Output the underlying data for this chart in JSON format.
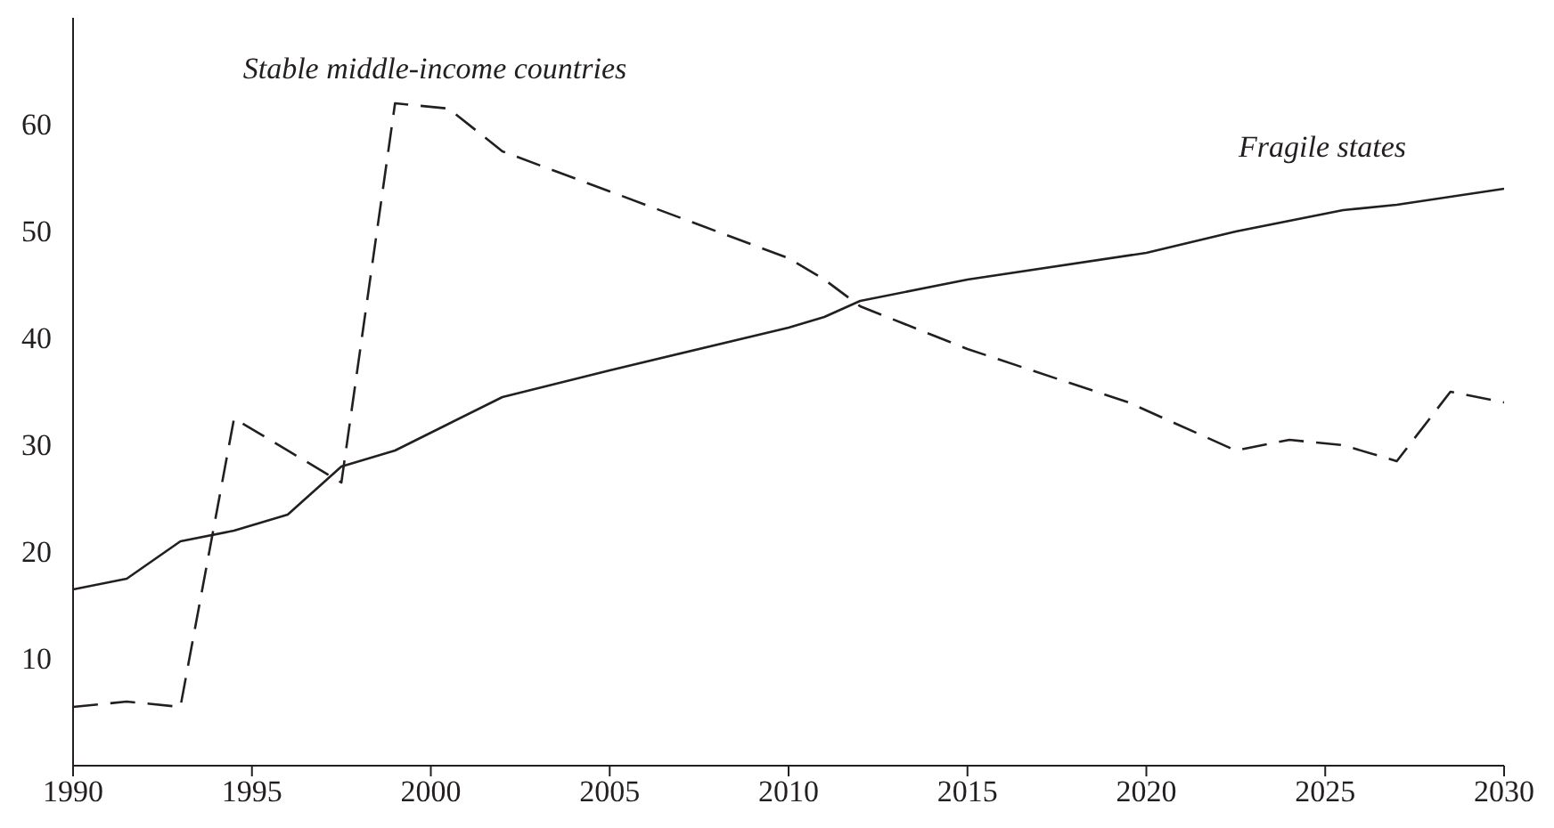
{
  "chart_data": {
    "type": "line",
    "xlim": [
      1990,
      2030
    ],
    "xticks": [
      1990,
      1995,
      2000,
      2005,
      2010,
      2015,
      2020,
      2025,
      2030
    ],
    "ylim": [
      0,
      70
    ],
    "yticks": [
      10,
      20,
      30,
      40,
      50,
      60
    ],
    "grid": false,
    "legend": false,
    "marker": "none",
    "series": [
      {
        "color": "#231f20",
        "line_style": "solid",
        "x": [
          1990,
          1991.5,
          1993,
          1994.5,
          1996,
          1997.5,
          1999,
          2000.5,
          2002,
          2005,
          2010,
          2011,
          2012,
          2015,
          2020,
          2022.5,
          2025.5,
          2027,
          2030
        ],
        "values": [
          16.5,
          17.5,
          21,
          22,
          23.5,
          28,
          29.5,
          32,
          34.5,
          37,
          41,
          42,
          43.5,
          45.5,
          48,
          50,
          52,
          52.5,
          54
        ]
      },
      {
        "color": "#231f20",
        "line_style": "dashed",
        "x": [
          1990,
          1991.5,
          1993,
          1994.5,
          1997.5,
          1999,
          2000.5,
          2002,
          2010,
          2011,
          2012,
          2015,
          2019.5,
          2022.5,
          2024,
          2025.5,
          2027,
          2028.5,
          2030
        ],
        "values": [
          5.5,
          6,
          5.5,
          32.5,
          26.5,
          62,
          61.5,
          57.5,
          47.5,
          45.5,
          43,
          39,
          34,
          29.5,
          30.5,
          30,
          28.5,
          35,
          34
        ]
      }
    ],
    "annotations": [
      "Stable middle-income countries",
      "Fragile states"
    ]
  }
}
